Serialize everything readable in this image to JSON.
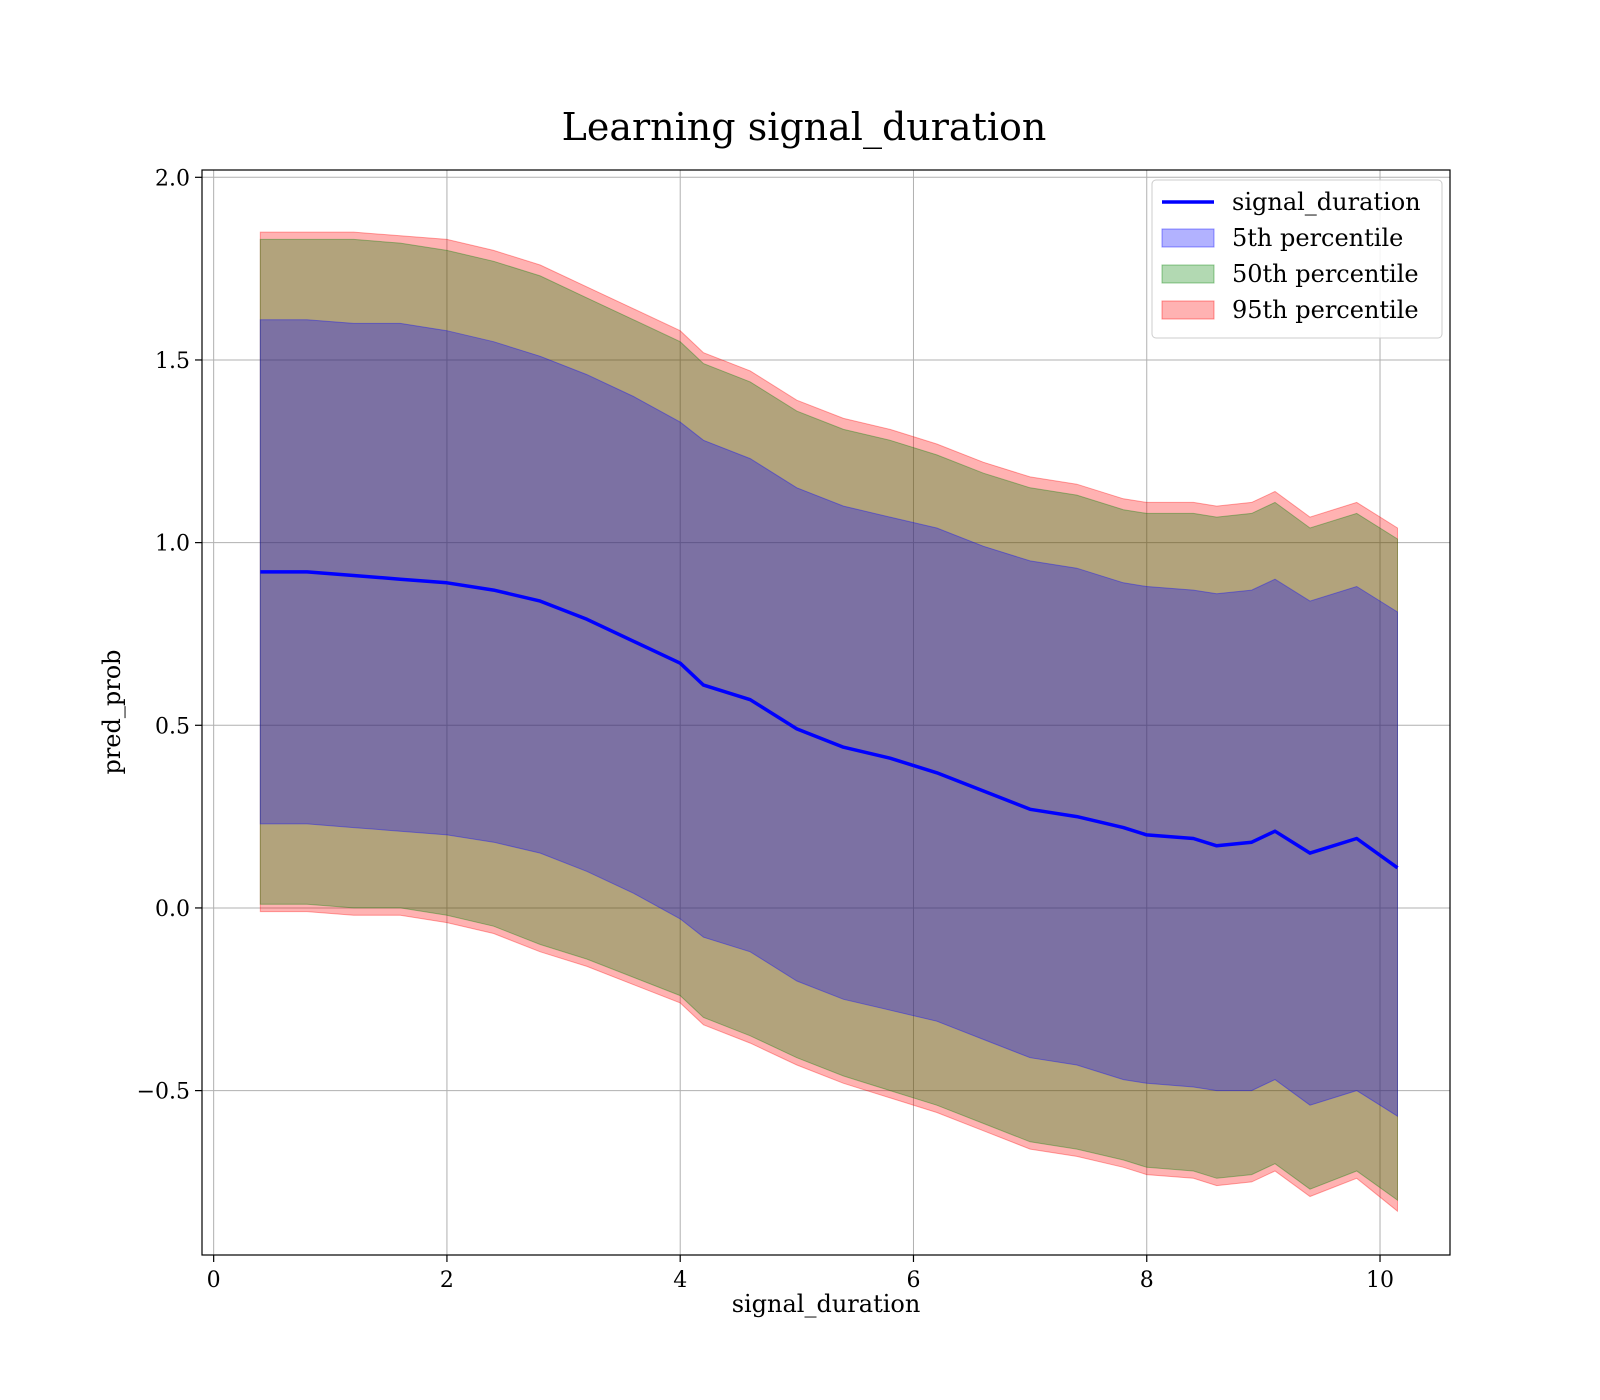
{
  "chart_data": {
    "type": "line",
    "title": "Learning signal_duration",
    "xlabel": "signal_duration",
    "ylabel": "pred_prob",
    "xlim": [
      -0.1,
      10.6
    ],
    "ylim": [
      -0.95,
      2.02
    ],
    "xticks": [
      0,
      2,
      4,
      6,
      8,
      10
    ],
    "xtick_labels": [
      "0",
      "2",
      "4",
      "6",
      "8",
      "10"
    ],
    "yticks": [
      -0.5,
      0.0,
      0.5,
      1.0,
      1.5,
      2.0
    ],
    "ytick_labels": [
      "−0.5",
      "0.0",
      "0.5",
      "1.0",
      "1.5",
      "2.0"
    ],
    "grid": true,
    "legend_position": "top-right",
    "x": [
      0.4,
      0.8,
      1.2,
      1.6,
      2.0,
      2.4,
      2.8,
      3.2,
      3.6,
      4.0,
      4.2,
      4.6,
      5.0,
      5.4,
      5.8,
      6.2,
      6.6,
      7.0,
      7.4,
      7.8,
      8.0,
      8.4,
      8.6,
      8.9,
      9.1,
      9.4,
      9.8,
      10.15
    ],
    "line": {
      "name": "signal_duration",
      "color": "#0000ff",
      "values": [
        0.92,
        0.92,
        0.91,
        0.9,
        0.89,
        0.87,
        0.84,
        0.79,
        0.73,
        0.67,
        0.61,
        0.57,
        0.49,
        0.44,
        0.41,
        0.37,
        0.32,
        0.27,
        0.25,
        0.22,
        0.2,
        0.19,
        0.17,
        0.18,
        0.21,
        0.15,
        0.19,
        0.11
      ]
    },
    "bands": [
      {
        "name": "95th percentile",
        "color": "#ff0000",
        "opacity": 0.3,
        "upper": [
          1.85,
          1.85,
          1.85,
          1.84,
          1.83,
          1.8,
          1.76,
          1.7,
          1.64,
          1.58,
          1.52,
          1.47,
          1.39,
          1.34,
          1.31,
          1.27,
          1.22,
          1.18,
          1.16,
          1.12,
          1.11,
          1.11,
          1.1,
          1.11,
          1.14,
          1.07,
          1.11,
          1.04
        ],
        "lower": [
          -0.01,
          -0.01,
          -0.02,
          -0.02,
          -0.04,
          -0.07,
          -0.12,
          -0.16,
          -0.21,
          -0.26,
          -0.32,
          -0.37,
          -0.43,
          -0.48,
          -0.52,
          -0.56,
          -0.61,
          -0.66,
          -0.68,
          -0.71,
          -0.73,
          -0.74,
          -0.76,
          -0.75,
          -0.72,
          -0.79,
          -0.74,
          -0.83
        ]
      },
      {
        "name": "50th percentile",
        "color": "#008000",
        "opacity": 0.3,
        "upper": [
          1.83,
          1.83,
          1.83,
          1.82,
          1.8,
          1.77,
          1.73,
          1.67,
          1.61,
          1.55,
          1.49,
          1.44,
          1.36,
          1.31,
          1.28,
          1.24,
          1.19,
          1.15,
          1.13,
          1.09,
          1.08,
          1.08,
          1.07,
          1.08,
          1.11,
          1.04,
          1.08,
          1.01
        ],
        "lower": [
          0.01,
          0.01,
          0.0,
          0.0,
          -0.02,
          -0.05,
          -0.1,
          -0.14,
          -0.19,
          -0.24,
          -0.3,
          -0.35,
          -0.41,
          -0.46,
          -0.5,
          -0.54,
          -0.59,
          -0.64,
          -0.66,
          -0.69,
          -0.71,
          -0.72,
          -0.74,
          -0.73,
          -0.7,
          -0.77,
          -0.72,
          -0.8
        ]
      },
      {
        "name": "5th percentile",
        "color": "#0000ff",
        "opacity": 0.3,
        "upper": [
          1.61,
          1.61,
          1.6,
          1.6,
          1.58,
          1.55,
          1.51,
          1.46,
          1.4,
          1.33,
          1.28,
          1.23,
          1.15,
          1.1,
          1.07,
          1.04,
          0.99,
          0.95,
          0.93,
          0.89,
          0.88,
          0.87,
          0.86,
          0.87,
          0.9,
          0.84,
          0.88,
          0.81
        ],
        "lower": [
          0.23,
          0.23,
          0.22,
          0.21,
          0.2,
          0.18,
          0.15,
          0.1,
          0.04,
          -0.03,
          -0.08,
          -0.12,
          -0.2,
          -0.25,
          -0.28,
          -0.31,
          -0.36,
          -0.41,
          -0.43,
          -0.47,
          -0.48,
          -0.49,
          -0.5,
          -0.5,
          -0.47,
          -0.54,
          -0.5,
          -0.57
        ]
      }
    ],
    "legend": [
      {
        "label": "signal_duration",
        "kind": "line",
        "color": "#0000ff"
      },
      {
        "label": "5th percentile",
        "kind": "patch",
        "color": "#0000ff"
      },
      {
        "label": "50th percentile",
        "kind": "patch",
        "color": "#008000"
      },
      {
        "label": "95th percentile",
        "kind": "patch",
        "color": "#ff0000"
      }
    ]
  }
}
